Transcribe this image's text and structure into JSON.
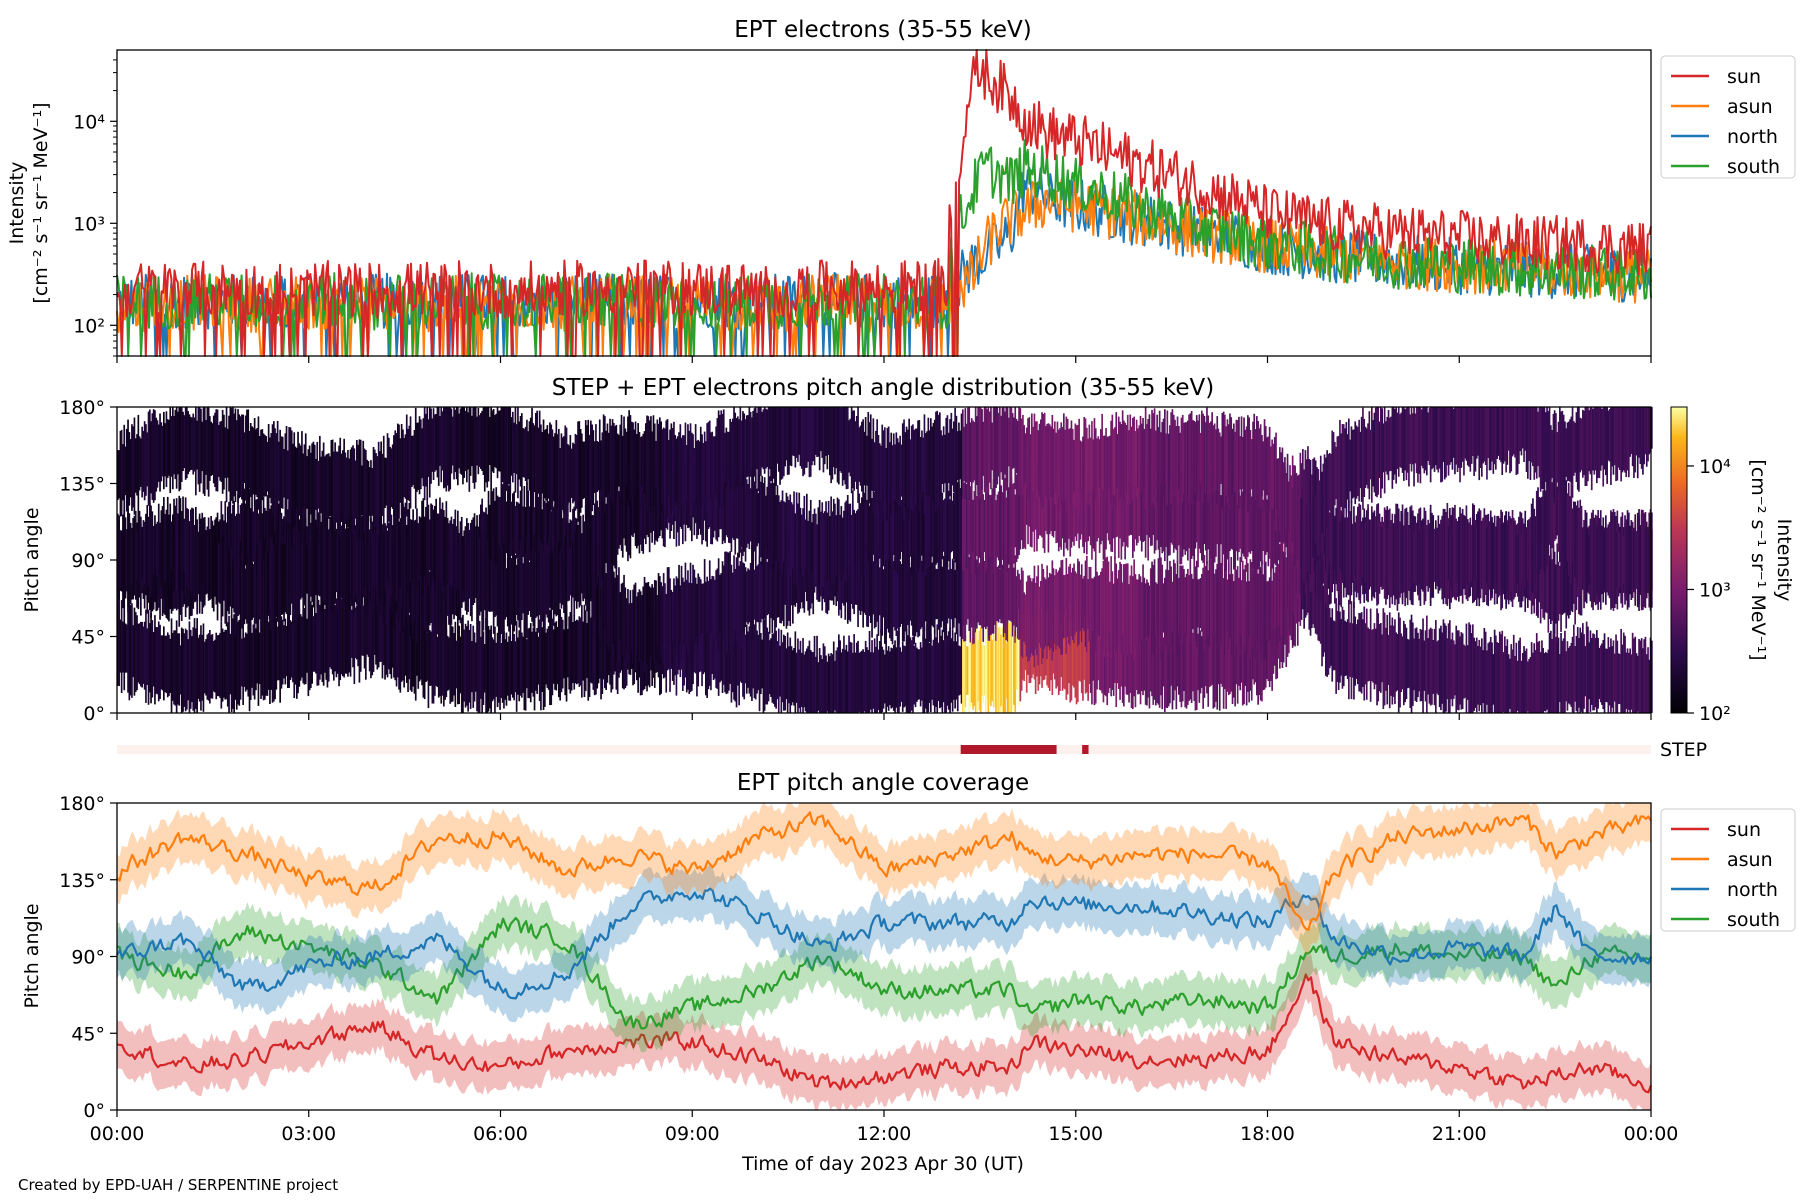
{
  "footer": "Created by EPD-UAH / SERPENTINE project",
  "colors": {
    "sun": "#d62728",
    "asun": "#ff7f0e",
    "north": "#1f77b4",
    "south": "#2ca02c",
    "step_bar": "#b2182b",
    "step_bg": "#fdf1ee"
  },
  "chart_data": [
    {
      "type": "line",
      "title": "EPT electrons (35-55 keV)",
      "ylabel": "Intensity",
      "yunit": "[cm⁻² s⁻¹ sr⁻¹ MeV⁻¹]",
      "yscale": "log",
      "ylim": [
        50,
        50000
      ],
      "yticks": [
        "10²",
        "10³",
        "10⁴"
      ],
      "xlim": [
        0,
        24
      ],
      "legend": "right-top",
      "series": [
        {
          "name": "sun",
          "x": [
            0,
            1,
            2,
            3,
            4,
            5,
            6,
            7,
            8,
            9,
            10,
            11,
            12,
            13,
            13.2,
            13.5,
            13.8,
            14.2,
            14.5,
            15,
            15.5,
            16,
            17,
            18,
            19,
            20,
            21,
            22,
            23,
            24
          ],
          "values": [
            220,
            230,
            220,
            230,
            220,
            230,
            220,
            230,
            240,
            230,
            220,
            230,
            230,
            240,
            5000,
            33000,
            22000,
            11000,
            8000,
            6500,
            5000,
            3800,
            2200,
            1250,
            950,
            820,
            720,
            650,
            620,
            560
          ]
        },
        {
          "name": "asun",
          "x": [
            0,
            1,
            2,
            3,
            4,
            5,
            6,
            7,
            8,
            9,
            10,
            11,
            12,
            13,
            13.4,
            13.8,
            14.2,
            14.6,
            15,
            16,
            17,
            18,
            19,
            20,
            21,
            22,
            23,
            24
          ],
          "values": [
            160,
            170,
            160,
            170,
            165,
            160,
            170,
            160,
            170,
            165,
            160,
            170,
            160,
            170,
            300,
            900,
            1300,
            1700,
            1500,
            1100,
            800,
            600,
            480,
            430,
            390,
            360,
            330,
            300
          ]
        },
        {
          "name": "north",
          "x": [
            0,
            1,
            2,
            3,
            4,
            5,
            6,
            7,
            8,
            9,
            10,
            11,
            12,
            13,
            13.4,
            13.8,
            14,
            14.2,
            14.6,
            15,
            16,
            17,
            18,
            19,
            20,
            21,
            22,
            23,
            24
          ],
          "values": [
            170,
            175,
            170,
            175,
            170,
            175,
            170,
            175,
            170,
            175,
            170,
            175,
            170,
            175,
            400,
            600,
            800,
            2300,
            1700,
            1500,
            1100,
            800,
            600,
            480,
            420,
            380,
            350,
            330,
            310
          ]
        },
        {
          "name": "south",
          "x": [
            0,
            1,
            2,
            3,
            4,
            5,
            6,
            7,
            8,
            9,
            10,
            11,
            12,
            13,
            13.3,
            13.6,
            14,
            14.2,
            14.6,
            15,
            16,
            17,
            18,
            19,
            20,
            21,
            22,
            23,
            24
          ],
          "values": [
            170,
            175,
            170,
            175,
            170,
            175,
            170,
            175,
            170,
            175,
            170,
            175,
            170,
            175,
            1500,
            3500,
            2500,
            3500,
            3000,
            2400,
            1400,
            900,
            650,
            500,
            430,
            390,
            350,
            330,
            310
          ]
        }
      ]
    },
    {
      "type": "heatmap",
      "title": "STEP + EPT electrons pitch angle distribution (35-55 keV)",
      "ylabel": "Pitch angle",
      "ylim": [
        0,
        180
      ],
      "yticks": [
        "0°",
        "45°",
        "90°",
        "135°",
        "180°"
      ],
      "xlim": [
        0,
        24
      ],
      "colorbar": {
        "label": "Intensity",
        "unit": "[cm⁻² s⁻¹ sr⁻¹ MeV⁻¹]",
        "scale": "log",
        "range": [
          100,
          30000
        ],
        "ticks": [
          "10²",
          "10³",
          "10⁴"
        ],
        "colormap": "inferno"
      },
      "segments": [
        {
          "x0": 0,
          "x1": 8.5,
          "level": 180
        },
        {
          "x0": 8.5,
          "x1": 13.2,
          "level": 240
        },
        {
          "x0": 13.2,
          "x1": 14.1,
          "level": 700
        },
        {
          "x0": 14.1,
          "x1": 16,
          "level": 900
        },
        {
          "x0": 16,
          "x1": 18.5,
          "level": 700
        },
        {
          "x0": 18.5,
          "x1": 24,
          "level": 400
        }
      ],
      "low_angle_enhancement": {
        "x0": 13.2,
        "x1": 14.1,
        "angle_range": [
          0,
          55
        ],
        "level": 22000
      },
      "orange_band": {
        "x0": 14.1,
        "x1": 15.2,
        "angle_range": [
          0,
          45
        ],
        "level": 3500
      }
    },
    {
      "type": "bar",
      "label": "STEP",
      "coverage": [
        {
          "x0": 13.2,
          "x1": 14.7
        },
        {
          "x0": 15.1,
          "x1": 15.2
        }
      ]
    },
    {
      "type": "line",
      "title": "EPT pitch angle coverage",
      "ylabel": "Pitch angle",
      "xlabel": "Time of day 2023 Apr 30 (UT)",
      "ylim": [
        0,
        180
      ],
      "yticks": [
        "0°",
        "45°",
        "90°",
        "135°",
        "180°"
      ],
      "xlim": [
        0,
        24
      ],
      "xticks": [
        "00:00",
        "03:00",
        "06:00",
        "09:00",
        "12:00",
        "15:00",
        "18:00",
        "21:00",
        "00:00"
      ],
      "legend": "right-top",
      "series": [
        {
          "name": "sun",
          "x": [
            0,
            1,
            2,
            3,
            4,
            5,
            6,
            7,
            8,
            9,
            10,
            11,
            12,
            13,
            14,
            14.2,
            15,
            16,
            17,
            18,
            18.6,
            19,
            20,
            21,
            22,
            22.5,
            23,
            24
          ],
          "values": [
            40,
            25,
            30,
            40,
            50,
            30,
            25,
            35,
            40,
            40,
            30,
            15,
            20,
            25,
            25,
            40,
            35,
            30,
            30,
            35,
            80,
            40,
            30,
            25,
            15,
            20,
            25,
            15
          ]
        },
        {
          "name": "asun",
          "x": [
            0,
            1,
            2,
            3,
            4,
            5,
            6,
            7,
            8,
            9,
            10,
            11,
            12,
            13,
            14,
            14.2,
            15,
            16,
            17,
            18,
            18.6,
            19,
            20,
            21,
            22,
            22.5,
            23,
            24
          ],
          "values": [
            140,
            160,
            150,
            135,
            130,
            160,
            160,
            140,
            150,
            140,
            160,
            170,
            140,
            150,
            160,
            150,
            145,
            150,
            150,
            145,
            100,
            140,
            160,
            165,
            170,
            150,
            160,
            170
          ]
        },
        {
          "name": "north",
          "x": [
            0,
            1,
            2,
            3,
            4,
            5,
            6,
            7,
            8,
            9,
            10,
            11,
            12,
            13,
            14,
            14.2,
            15,
            16,
            17,
            18,
            18.6,
            19,
            20,
            21,
            22,
            22.5,
            23,
            24
          ],
          "values": [
            90,
            100,
            70,
            85,
            90,
            100,
            70,
            80,
            120,
            130,
            115,
            95,
            110,
            110,
            110,
            125,
            120,
            120,
            115,
            110,
            130,
            100,
            90,
            95,
            90,
            120,
            90,
            90
          ]
        },
        {
          "name": "south",
          "x": [
            0,
            1,
            2,
            3,
            4,
            5,
            6,
            7,
            8,
            9,
            10,
            11,
            12,
            13,
            14,
            14.2,
            15,
            16,
            17,
            18,
            18.6,
            19,
            20,
            21,
            22,
            22.5,
            23,
            24
          ],
          "values": [
            90,
            80,
            105,
            95,
            85,
            65,
            110,
            100,
            50,
            60,
            70,
            90,
            70,
            70,
            70,
            55,
            65,
            60,
            65,
            60,
            95,
            90,
            95,
            90,
            90,
            70,
            90,
            90
          ]
        }
      ]
    }
  ]
}
